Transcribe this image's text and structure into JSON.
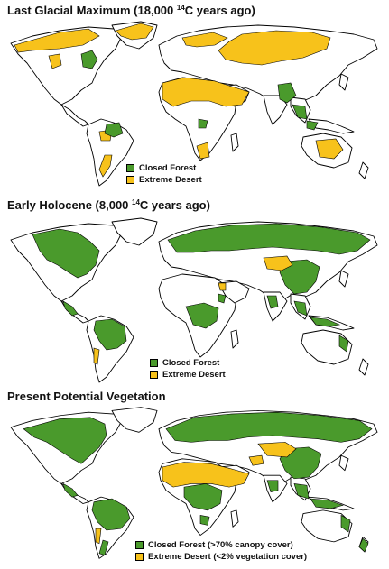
{
  "colors": {
    "closed_forest": "#4a9a2c",
    "extreme_desert": "#f7c21b",
    "land": "#ffffff",
    "coast": "#000000"
  },
  "panels": [
    {
      "title_pre": "Last Glacial Maximum (18,000 ",
      "title_sup": "14",
      "title_post": "C years ago)",
      "legend": {
        "forest_label": "Closed Forest",
        "desert_label": "Extreme Desert"
      }
    },
    {
      "title_pre": "Early Holocene (8,000 ",
      "title_sup": "14",
      "title_post": "C years ago)",
      "legend": {
        "forest_label": "Closed Forest",
        "desert_label": "Extreme Desert"
      }
    },
    {
      "title_pre": "Present Potential Vegetation",
      "title_sup": "",
      "title_post": "",
      "legend": {
        "forest_label": "Closed Forest (>70% canopy cover)",
        "desert_label": "Extreme Desert (<2% vegetation cover)"
      }
    }
  ]
}
